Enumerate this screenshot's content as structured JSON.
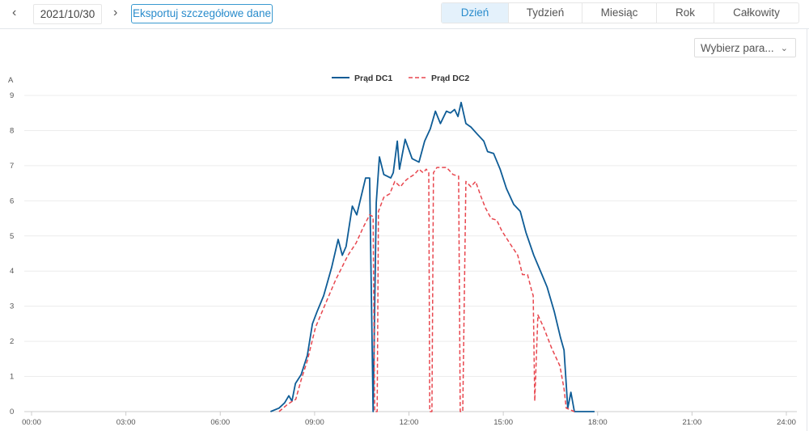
{
  "toolbar": {
    "prev_icon": "chevron-left-icon",
    "next_icon": "chevron-right-icon",
    "date": "2021/10/30",
    "export_label": "Eksportuj szczegółowe dane"
  },
  "tabs": [
    {
      "label": "Dzień",
      "active": true
    },
    {
      "label": "Tydzień"
    },
    {
      "label": "Miesiąc"
    },
    {
      "label": "Rok"
    },
    {
      "label": "Całkowity"
    }
  ],
  "param_select": {
    "value": "Wybierz para...",
    "icon": "chevron-down-icon"
  },
  "colors": {
    "dc1": "#0e5c96",
    "dc2": "#e8474f",
    "accent": "#2a8ccc"
  },
  "chart_data": {
    "type": "line",
    "ylabel": "A",
    "ylim": [
      0,
      9
    ],
    "xlim": [
      0,
      24
    ],
    "yticks": [
      "0",
      "1",
      "2",
      "3",
      "4",
      "5",
      "6",
      "7",
      "8",
      "9"
    ],
    "xticks": [
      "00:00",
      "03:00",
      "06:00",
      "09:00",
      "12:00",
      "15:00",
      "18:00",
      "21:00",
      "24:00"
    ],
    "legend_position": "top-center",
    "grid": true,
    "series": [
      {
        "name": "Prąd DC1",
        "style": "solid",
        "points": [
          [
            7.6,
            0
          ],
          [
            7.87,
            0.1
          ],
          [
            8.05,
            0.25
          ],
          [
            8.18,
            0.45
          ],
          [
            8.28,
            0.3
          ],
          [
            8.39,
            0.8
          ],
          [
            8.57,
            1.05
          ],
          [
            8.77,
            1.6
          ],
          [
            8.93,
            2.5
          ],
          [
            9.08,
            2.85
          ],
          [
            9.29,
            3.3
          ],
          [
            9.54,
            4.1
          ],
          [
            9.75,
            4.9
          ],
          [
            9.88,
            4.45
          ],
          [
            10.0,
            4.7
          ],
          [
            10.2,
            5.85
          ],
          [
            10.34,
            5.6
          ],
          [
            10.62,
            6.65
          ],
          [
            10.75,
            6.65
          ],
          [
            10.86,
            0
          ],
          [
            10.96,
            5.95
          ],
          [
            11.06,
            7.25
          ],
          [
            11.2,
            6.75
          ],
          [
            11.42,
            6.65
          ],
          [
            11.5,
            6.8
          ],
          [
            11.63,
            7.7
          ],
          [
            11.7,
            6.9
          ],
          [
            11.88,
            7.75
          ],
          [
            12.1,
            7.2
          ],
          [
            12.32,
            7.1
          ],
          [
            12.5,
            7.7
          ],
          [
            12.68,
            8.05
          ],
          [
            12.84,
            8.55
          ],
          [
            13.0,
            8.2
          ],
          [
            13.19,
            8.55
          ],
          [
            13.32,
            8.5
          ],
          [
            13.45,
            8.6
          ],
          [
            13.56,
            8.4
          ],
          [
            13.66,
            8.8
          ],
          [
            13.81,
            8.2
          ],
          [
            13.97,
            8.1
          ],
          [
            14.17,
            7.9
          ],
          [
            14.38,
            7.7
          ],
          [
            14.5,
            7.4
          ],
          [
            14.69,
            7.35
          ],
          [
            14.9,
            6.9
          ],
          [
            15.1,
            6.35
          ],
          [
            15.33,
            5.9
          ],
          [
            15.54,
            5.7
          ],
          [
            15.72,
            5.1
          ],
          [
            15.97,
            4.45
          ],
          [
            16.23,
            3.9
          ],
          [
            16.39,
            3.55
          ],
          [
            16.62,
            2.85
          ],
          [
            16.82,
            2.1
          ],
          [
            16.93,
            1.75
          ],
          [
            17.05,
            0.1
          ],
          [
            17.15,
            0.55
          ],
          [
            17.26,
            0
          ],
          [
            17.9,
            0
          ]
        ]
      },
      {
        "name": "Prąd DC2",
        "style": "dashed",
        "points": [
          [
            7.87,
            0
          ],
          [
            8.13,
            0.2
          ],
          [
            8.3,
            0.3
          ],
          [
            8.4,
            0.35
          ],
          [
            8.57,
            0.9
          ],
          [
            8.77,
            1.45
          ],
          [
            9.03,
            2.4
          ],
          [
            9.29,
            2.95
          ],
          [
            9.67,
            3.75
          ],
          [
            10.06,
            4.45
          ],
          [
            10.32,
            4.8
          ],
          [
            10.55,
            5.25
          ],
          [
            10.75,
            5.6
          ],
          [
            10.86,
            5.55
          ],
          [
            10.91,
            0
          ],
          [
            10.99,
            0
          ],
          [
            11.03,
            5.7
          ],
          [
            11.2,
            6.1
          ],
          [
            11.39,
            6.2
          ],
          [
            11.55,
            6.55
          ],
          [
            11.73,
            6.4
          ],
          [
            11.86,
            6.55
          ],
          [
            11.99,
            6.65
          ],
          [
            12.17,
            6.75
          ],
          [
            12.32,
            6.9
          ],
          [
            12.45,
            6.8
          ],
          [
            12.55,
            6.9
          ],
          [
            12.63,
            6.8
          ],
          [
            12.66,
            0
          ],
          [
            12.73,
            0
          ],
          [
            12.78,
            6.8
          ],
          [
            12.89,
            6.95
          ],
          [
            13.09,
            6.95
          ],
          [
            13.2,
            6.95
          ],
          [
            13.4,
            6.75
          ],
          [
            13.58,
            6.7
          ],
          [
            13.63,
            0
          ],
          [
            13.71,
            0
          ],
          [
            13.81,
            6.55
          ],
          [
            13.97,
            6.4
          ],
          [
            14.12,
            6.55
          ],
          [
            14.3,
            6.1
          ],
          [
            14.43,
            5.8
          ],
          [
            14.61,
            5.5
          ],
          [
            14.79,
            5.45
          ],
          [
            14.95,
            5.15
          ],
          [
            15.2,
            4.8
          ],
          [
            15.46,
            4.45
          ],
          [
            15.61,
            3.9
          ],
          [
            15.77,
            3.9
          ],
          [
            15.9,
            3.45
          ],
          [
            15.95,
            3.3
          ],
          [
            16.0,
            0.3
          ],
          [
            16.1,
            2.75
          ],
          [
            16.28,
            2.4
          ],
          [
            16.54,
            1.8
          ],
          [
            16.8,
            1.3
          ],
          [
            16.93,
            0.65
          ],
          [
            17.0,
            0.1
          ],
          [
            17.26,
            0
          ]
        ]
      }
    ]
  }
}
